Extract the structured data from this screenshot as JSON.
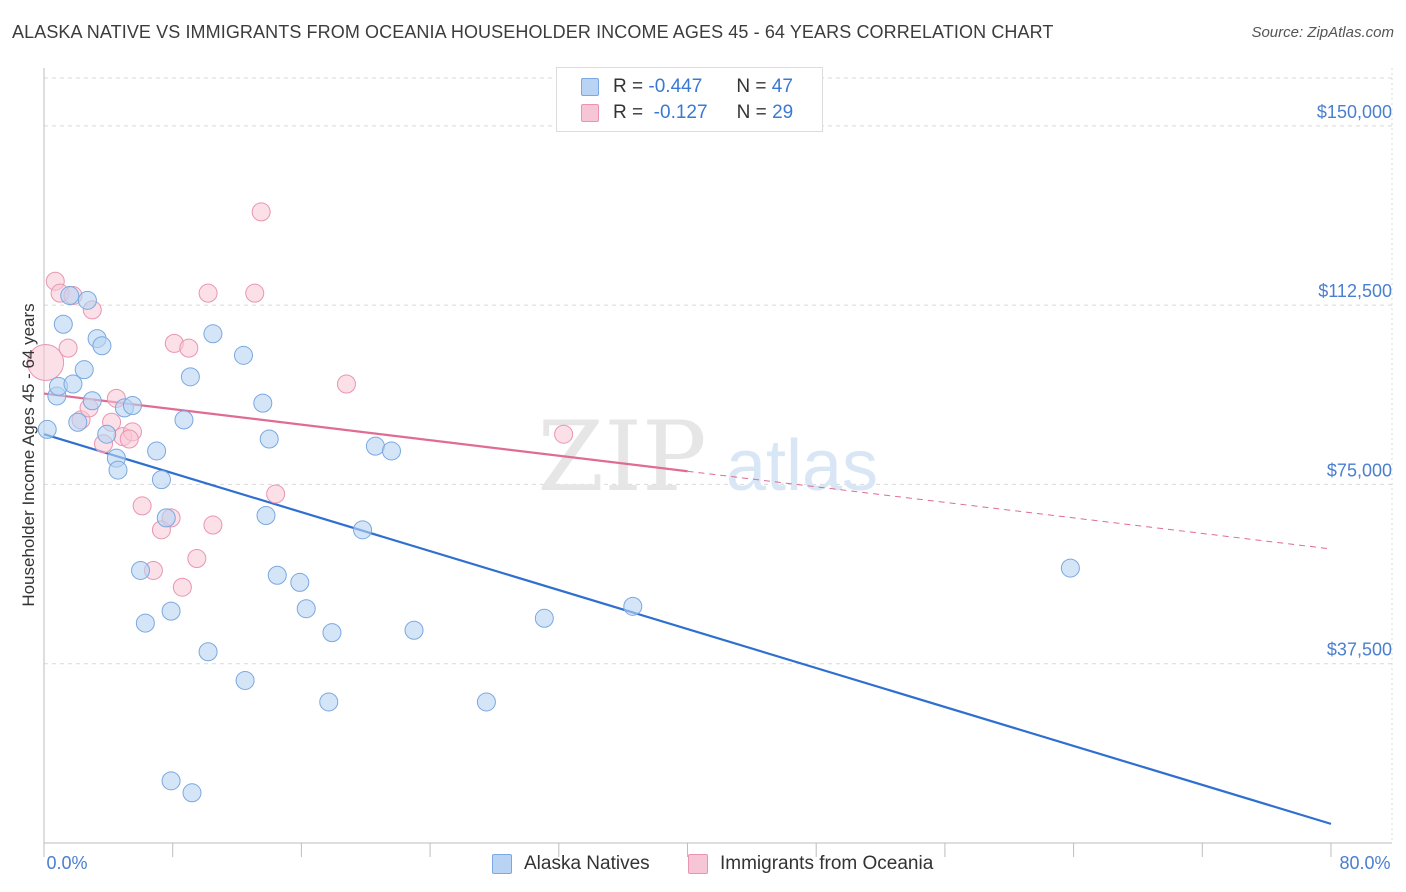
{
  "title": "ALASKA NATIVE VS IMMIGRANTS FROM OCEANIA HOUSEHOLDER INCOME AGES 45 - 64 YEARS CORRELATION CHART",
  "source": "Source: ZipAtlas.com",
  "watermark": {
    "zip": "ZIP",
    "atlas": "atlas"
  },
  "legend": {
    "rows": [
      {
        "r_label": "R =",
        "r_value": "-0.447",
        "n_label": "N =",
        "n_value": "47"
      },
      {
        "r_label": "R =",
        "r_value": "-0.127",
        "n_label": "N =",
        "n_value": "29"
      }
    ]
  },
  "colors": {
    "blue_fill": "#b8d3f3",
    "blue_stroke": "#7aa8e0",
    "blue_line": "#2f6fd0",
    "pink_fill": "#f7c6d6",
    "pink_stroke": "#e995b1",
    "pink_line": "#e06b93",
    "axis_text": "#4a7fd0",
    "grid": "#d9d9d9"
  },
  "chart_data": {
    "type": "scatter",
    "title": "ALASKA NATIVE VS IMMIGRANTS FROM OCEANIA HOUSEHOLDER INCOME AGES 45 - 64 YEARS CORRELATION CHART",
    "xlabel": "",
    "ylabel": "Householder Income Ages 45 - 64 years",
    "xlim": [
      0,
      80
    ],
    "ylim": [
      0,
      160000
    ],
    "x_tick_labels": [
      "0.0%",
      "80.0%"
    ],
    "y_ticks": [
      37500,
      75000,
      112500,
      150000
    ],
    "y_tick_labels": [
      "$37,500",
      "$75,000",
      "$112,500",
      "$150,000"
    ],
    "grid": true,
    "series": [
      {
        "name": "Alaska Natives",
        "R": -0.447,
        "N": 47,
        "trend": {
          "x": [
            0,
            80
          ],
          "y": [
            85500,
            4000
          ],
          "dashed_from": null
        },
        "points": [
          [
            0.2,
            86500
          ],
          [
            0.8,
            93500
          ],
          [
            0.9,
            95500
          ],
          [
            1.2,
            108500
          ],
          [
            1.6,
            114500
          ],
          [
            1.8,
            96000
          ],
          [
            2.1,
            88000
          ],
          [
            2.5,
            99000
          ],
          [
            2.7,
            113500
          ],
          [
            3.0,
            92500
          ],
          [
            3.3,
            105500
          ],
          [
            3.6,
            104000
          ],
          [
            3.9,
            85500
          ],
          [
            4.5,
            80500
          ],
          [
            4.6,
            78000
          ],
          [
            5.0,
            91000
          ],
          [
            5.5,
            91500
          ],
          [
            6.0,
            57000
          ],
          [
            6.3,
            46000
          ],
          [
            7.0,
            82000
          ],
          [
            7.3,
            76000
          ],
          [
            7.6,
            68000
          ],
          [
            7.9,
            48500
          ],
          [
            7.9,
            13000
          ],
          [
            8.7,
            88500
          ],
          [
            9.1,
            97500
          ],
          [
            9.2,
            10500
          ],
          [
            10.2,
            40000
          ],
          [
            10.5,
            106500
          ],
          [
            12.4,
            102000
          ],
          [
            12.5,
            34000
          ],
          [
            13.6,
            92000
          ],
          [
            13.8,
            68500
          ],
          [
            14.0,
            84500
          ],
          [
            14.5,
            56000
          ],
          [
            15.9,
            54500
          ],
          [
            16.3,
            49000
          ],
          [
            17.7,
            29500
          ],
          [
            17.9,
            44000
          ],
          [
            19.8,
            65500
          ],
          [
            20.6,
            83000
          ],
          [
            21.6,
            82000
          ],
          [
            23.0,
            44500
          ],
          [
            27.5,
            29500
          ],
          [
            31.1,
            47000
          ],
          [
            36.6,
            49500
          ],
          [
            63.8,
            57500
          ]
        ]
      },
      {
        "name": "Immigrants from Oceania",
        "R": -0.127,
        "N": 29,
        "trend": {
          "x": [
            0,
            80
          ],
          "y": [
            94000,
            61500
          ],
          "dashed_from": 40
        },
        "points": [
          [
            0.1,
            100500
          ],
          [
            0.7,
            117500
          ],
          [
            1.0,
            115000
          ],
          [
            1.5,
            103500
          ],
          [
            1.8,
            114500
          ],
          [
            2.3,
            88500
          ],
          [
            2.8,
            91000
          ],
          [
            3.0,
            111500
          ],
          [
            3.7,
            83500
          ],
          [
            4.2,
            88000
          ],
          [
            4.5,
            93000
          ],
          [
            4.9,
            85000
          ],
          [
            5.5,
            86000
          ],
          [
            5.3,
            84500
          ],
          [
            6.1,
            70500
          ],
          [
            6.8,
            57000
          ],
          [
            7.3,
            65500
          ],
          [
            7.9,
            68000
          ],
          [
            8.1,
            104500
          ],
          [
            8.6,
            53500
          ],
          [
            9.0,
            103500
          ],
          [
            9.5,
            59500
          ],
          [
            10.2,
            115000
          ],
          [
            10.5,
            66500
          ],
          [
            13.1,
            115000
          ],
          [
            13.5,
            132000
          ],
          [
            14.4,
            73000
          ],
          [
            18.8,
            96000
          ],
          [
            32.3,
            85500
          ]
        ]
      }
    ]
  }
}
